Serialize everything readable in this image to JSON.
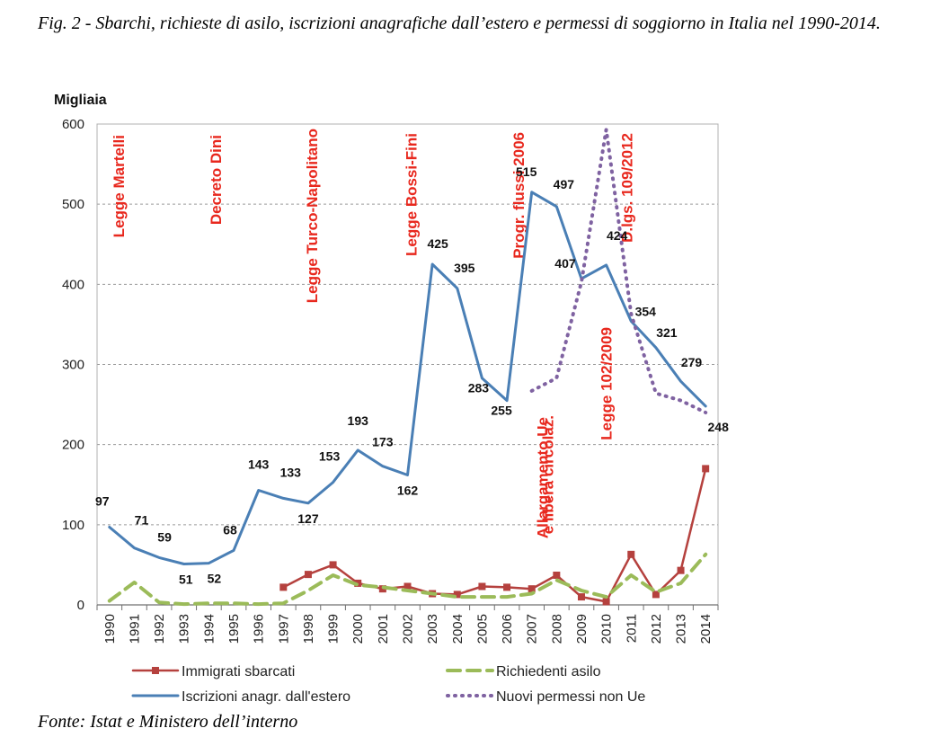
{
  "caption": "Fig. 2 - Sbarchi, richieste di asilo, iscrizioni anagrafiche dall’estero e permessi di soggiorno in Italia nel 1990-2014.",
  "source": "Fonte: Istat e Ministero dell’interno",
  "chart_data": {
    "type": "line",
    "ylabel": "Migliaia",
    "xlabel": "",
    "ylim": [
      0,
      600
    ],
    "yticks": [
      0,
      100,
      200,
      300,
      400,
      500,
      600
    ],
    "grid": "horizontal dashed",
    "legend_position": "bottom",
    "categories": [
      "1990",
      "1991",
      "1992",
      "1993",
      "1994",
      "1995",
      "1996",
      "1997",
      "1998",
      "1999",
      "2000",
      "2001",
      "2002",
      "2003",
      "2004",
      "2005",
      "2006",
      "2007",
      "2008",
      "2009",
      "2010",
      "2011",
      "2012",
      "2013",
      "2014"
    ],
    "series": [
      {
        "name": "Iscrizioni anagr. dall'estero",
        "color": "#4a7fb5",
        "style": "solid",
        "values": [
          97,
          71,
          59,
          51,
          52,
          68,
          143,
          133,
          127,
          153,
          193,
          173,
          162,
          425,
          395,
          283,
          255,
          515,
          497,
          407,
          424,
          354,
          321,
          279,
          248
        ]
      },
      {
        "name": "Immigrati sbarcati",
        "color": "#b5413e",
        "style": "solid-square-markers",
        "values": [
          null,
          null,
          null,
          null,
          null,
          null,
          null,
          22,
          38,
          50,
          27,
          20,
          23,
          14,
          13,
          23,
          22,
          20,
          37,
          10,
          4,
          63,
          13,
          43,
          170
        ]
      },
      {
        "name": "Richiedenti asilo",
        "color": "#9bbb59",
        "style": "dashed",
        "values": [
          5,
          28,
          3,
          1,
          2,
          2,
          1,
          2,
          18,
          37,
          25,
          22,
          18,
          14,
          10,
          10,
          10,
          14,
          31,
          18,
          10,
          37,
          16,
          27,
          63
        ]
      },
      {
        "name": "Nuovi permessi non Ue",
        "color": "#7f62a1",
        "style": "dotted",
        "values": [
          null,
          null,
          null,
          null,
          null,
          null,
          null,
          null,
          null,
          null,
          null,
          null,
          null,
          null,
          null,
          null,
          null,
          267,
          283,
          403,
          593,
          363,
          264,
          255,
          240
        ]
      }
    ],
    "data_labels": [
      "97",
      "71",
      "59",
      "51",
      "52",
      "68",
      "143",
      "133",
      "127",
      "153",
      "193",
      "173",
      "162",
      "425",
      "395",
      "283",
      "255",
      "515",
      "497",
      "407",
      "424",
      "354",
      "321",
      "279",
      "248"
    ],
    "annotations": [
      {
        "text": "Legge Martelli",
        "year": "1990"
      },
      {
        "text": "Decreto Dini",
        "year": "1995"
      },
      {
        "text": "Legge Turco-Napolitano",
        "year": "1998"
      },
      {
        "text": "Legge Bossi-Fini",
        "year": "2002"
      },
      {
        "text": "Progr. flussi 2006",
        "year": "2006"
      },
      {
        "text": "D.lgs. 109/2012",
        "year": "2011"
      },
      {
        "text": "Allargamento Ue",
        "year": "2007"
      },
      {
        "text": "e libera circolaz.",
        "year": "2008"
      },
      {
        "text": "Legge 102/2009",
        "year": "2010"
      }
    ],
    "legend": [
      "Immigrati sbarcati",
      "Richiedenti asilo",
      "Iscrizioni anagr. dall'estero",
      "Nuovi permessi non Ue"
    ]
  }
}
